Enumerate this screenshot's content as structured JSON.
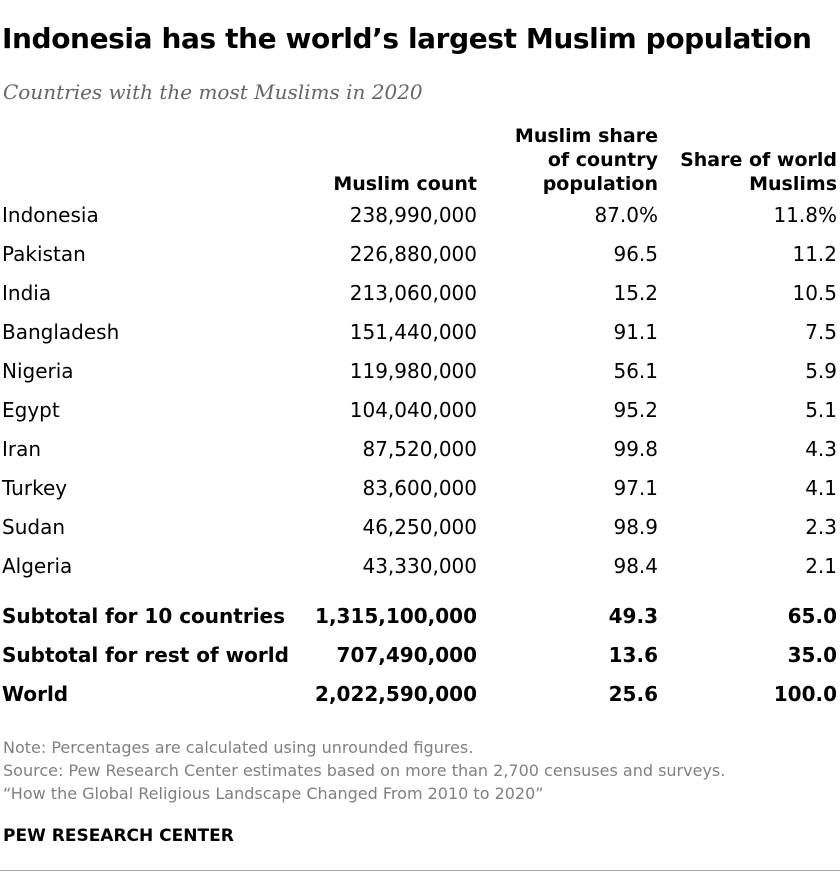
{
  "title": "Indonesia has the world’s largest Muslim population",
  "subtitle": "Countries with the most Muslims in 2020",
  "chart_data": {
    "type": "table",
    "columns": [
      {
        "lines": [
          "Muslim count"
        ]
      },
      {
        "lines": [
          "Muslim share",
          "of country",
          "population"
        ]
      },
      {
        "lines": [
          "Share of world",
          "Muslims"
        ]
      }
    ],
    "rows": [
      {
        "name": "Indonesia",
        "count": "238,990,000",
        "share_country": "87.0%",
        "share_world": "11.8%"
      },
      {
        "name": "Pakistan",
        "count": "226,880,000",
        "share_country": "96.5",
        "share_world": "11.2"
      },
      {
        "name": "India",
        "count": "213,060,000",
        "share_country": "15.2",
        "share_world": "10.5"
      },
      {
        "name": "Bangladesh",
        "count": "151,440,000",
        "share_country": "91.1",
        "share_world": "7.5"
      },
      {
        "name": "Nigeria",
        "count": "119,980,000",
        "share_country": "56.1",
        "share_world": "5.9"
      },
      {
        "name": "Egypt",
        "count": "104,040,000",
        "share_country": "95.2",
        "share_world": "5.1"
      },
      {
        "name": "Iran",
        "count": "87,520,000",
        "share_country": "99.8",
        "share_world": "4.3"
      },
      {
        "name": "Turkey",
        "count": "83,600,000",
        "share_country": "97.1",
        "share_world": "4.1"
      },
      {
        "name": "Sudan",
        "count": "46,250,000",
        "share_country": "98.9",
        "share_world": "2.3"
      },
      {
        "name": "Algeria",
        "count": "43,330,000",
        "share_country": "98.4",
        "share_world": "2.1"
      }
    ],
    "totals": [
      {
        "name": "Subtotal for 10 countries",
        "count": "1,315,100,000",
        "share_country": "49.3",
        "share_world": "65.0"
      },
      {
        "name": "Subtotal for rest of world",
        "count": "707,490,000",
        "share_country": "13.6",
        "share_world": "35.0"
      },
      {
        "name": "World",
        "count": "2,022,590,000",
        "share_country": "25.6",
        "share_world": "100.0"
      }
    ]
  },
  "notes": {
    "note": "Note: Percentages are calculated using unrounded figures.",
    "source": "Source: Pew Research Center estimates based on more than 2,700 censuses and surveys.",
    "report": "“How the Global Religious Landscape Changed From 2010 to 2020”"
  },
  "brand": "PEW RESEARCH CENTER"
}
